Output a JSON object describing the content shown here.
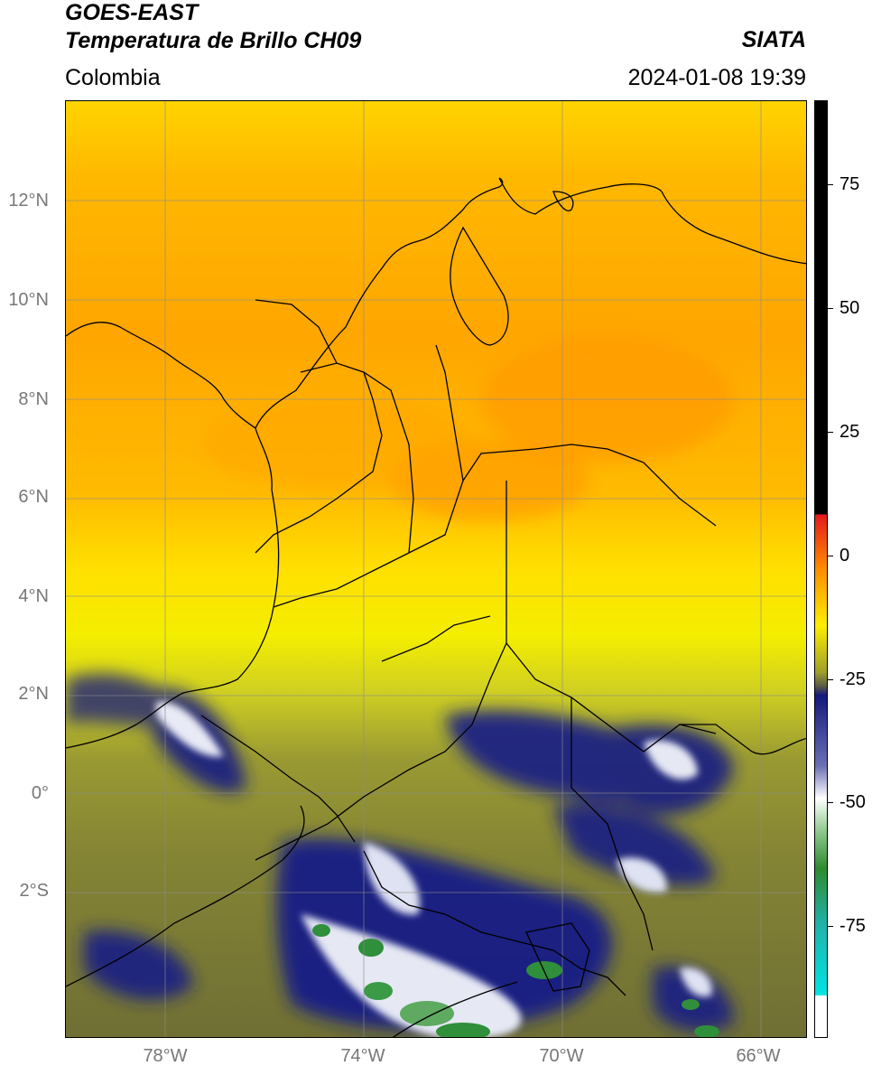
{
  "header": {
    "satellite": "GOES-EAST",
    "product": "Temperatura de Brillo CH09",
    "region": "Colombia",
    "source": "SIATA",
    "datetime": "2024-01-08 19:39"
  },
  "map": {
    "lat_labels": [
      "12°N",
      "10°N",
      "8°N",
      "6°N",
      "4°N",
      "2°N",
      "0°",
      "2°S"
    ],
    "lon_labels": [
      "78°W",
      "74°W",
      "70°W",
      "66°W"
    ],
    "extent": {
      "lon_min": -80,
      "lon_max": -65.05,
      "lat_min": -5,
      "lat_max": 14
    }
  },
  "colorbar": {
    "labels": [
      "75",
      "50",
      "25",
      "0",
      "-25",
      "-50",
      "-75"
    ],
    "range": [
      -97,
      88
    ],
    "colors": {
      "black": "#000000",
      "red": "#e41a1c",
      "orange": "#ff8c00",
      "yellow": "#ffee00",
      "olive": "#7d7d33",
      "navy": "#14197d",
      "white": "#ffffff",
      "green": "#2e8b2e",
      "teal": "#20b2aa",
      "cyan": "#00e5e5"
    }
  }
}
